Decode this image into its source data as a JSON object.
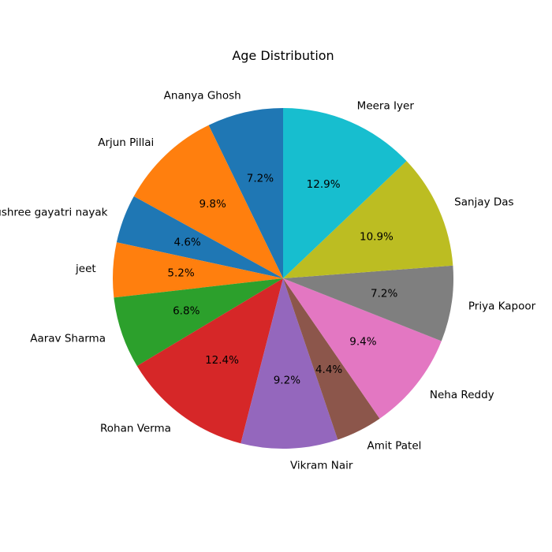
{
  "chart_data": {
    "type": "pie",
    "title": "Age Distribution",
    "start_angle_deg": 90,
    "direction": "counterclockwise",
    "slices": [
      {
        "label": "Ananya Ghosh",
        "pct": 7.2,
        "pct_label": "7.2%",
        "color": "#1f77b4"
      },
      {
        "label": "Arjun Pillai",
        "pct": 9.8,
        "pct_label": "9.8%",
        "color": "#ff7f0e"
      },
      {
        "label": "sushree gayatri nayak",
        "pct": 4.6,
        "pct_label": "4.6%",
        "color": "#1f77b4"
      },
      {
        "label": "jeet",
        "pct": 5.2,
        "pct_label": "5.2%",
        "color": "#ff7f0e"
      },
      {
        "label": "Aarav Sharma",
        "pct": 6.8,
        "pct_label": "6.8%",
        "color": "#2ca02c"
      },
      {
        "label": "Rohan Verma",
        "pct": 12.4,
        "pct_label": "12.4%",
        "color": "#d62728"
      },
      {
        "label": "Vikram Nair",
        "pct": 9.2,
        "pct_label": "9.2%",
        "color": "#9467bd"
      },
      {
        "label": "Amit Patel",
        "pct": 4.4,
        "pct_label": "4.4%",
        "color": "#8c564b"
      },
      {
        "label": "Neha Reddy",
        "pct": 9.4,
        "pct_label": "9.4%",
        "color": "#e377c2"
      },
      {
        "label": "Priya Kapoor",
        "pct": 7.2,
        "pct_label": "7.2%",
        "color": "#7f7f7f"
      },
      {
        "label": "Sanjay Das",
        "pct": 10.9,
        "pct_label": "10.9%",
        "color": "#bcbd22"
      },
      {
        "label": "Meera Iyer",
        "pct": 12.9,
        "pct_label": "12.9%",
        "color": "#17becf"
      }
    ]
  }
}
